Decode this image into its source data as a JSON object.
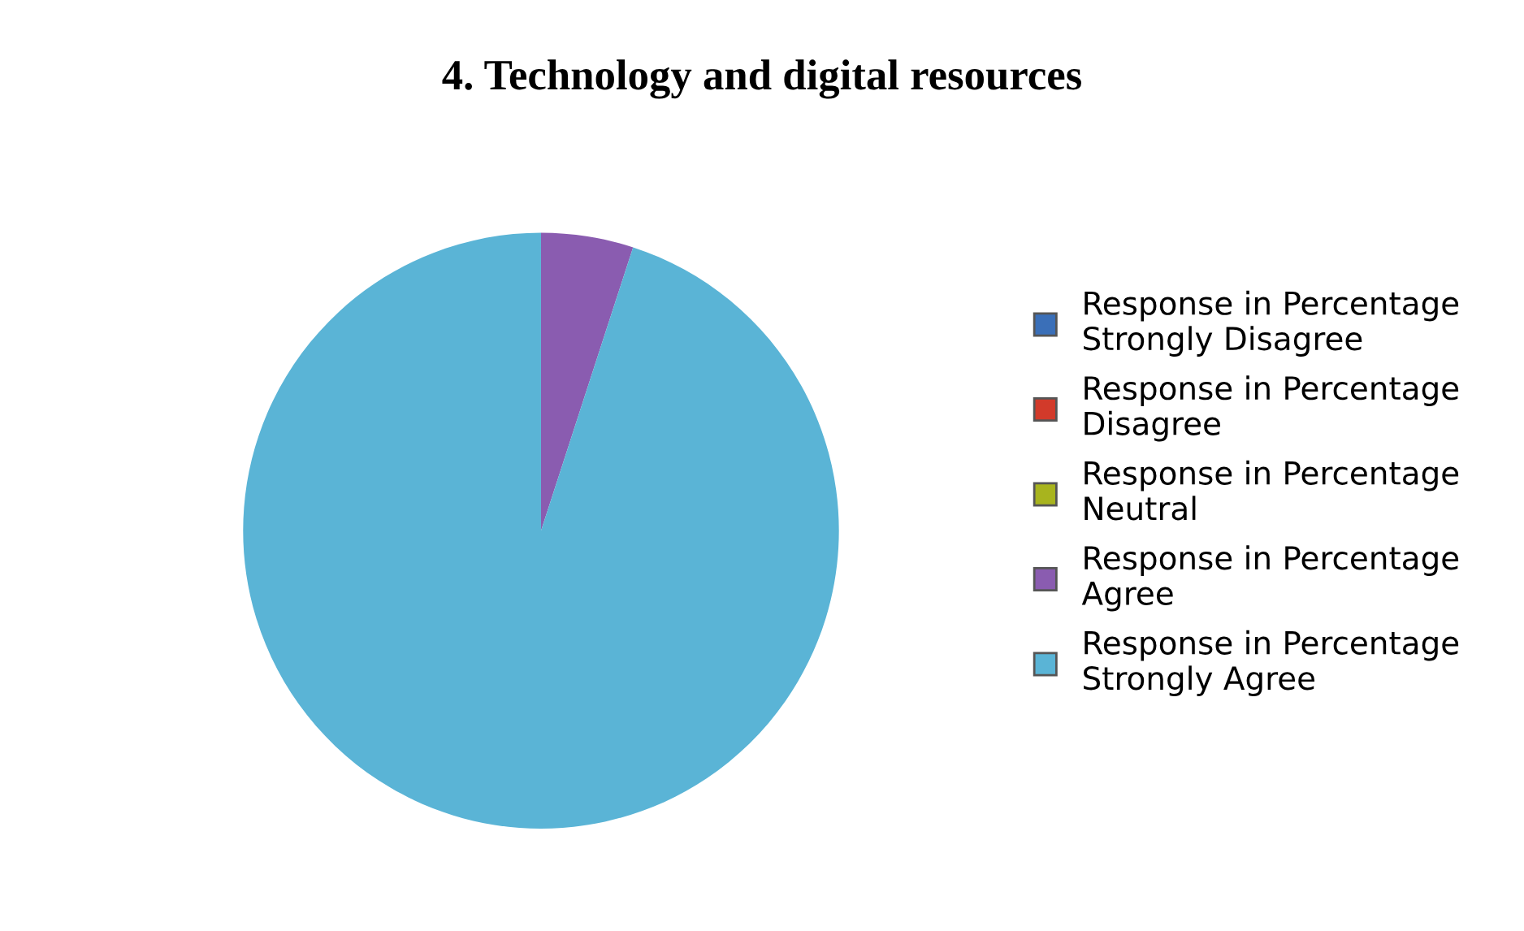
{
  "chart_data": {
    "type": "pie",
    "title": "4. Technology and digital resources",
    "categories": [
      "Response in Percentage\nStrongly Disagree",
      "Response in Percentage\nDisagree",
      "Response in Percentage\nNeutral",
      "Response in Percentage\nAgree",
      "Response in Percentage\nStrongly Agree"
    ],
    "values": [
      0,
      0,
      0,
      5,
      95
    ],
    "colors": [
      "#3a6fb8",
      "#d23a2a",
      "#a8b41e",
      "#8a5cb0",
      "#5ab4d6"
    ],
    "legend": "right"
  }
}
